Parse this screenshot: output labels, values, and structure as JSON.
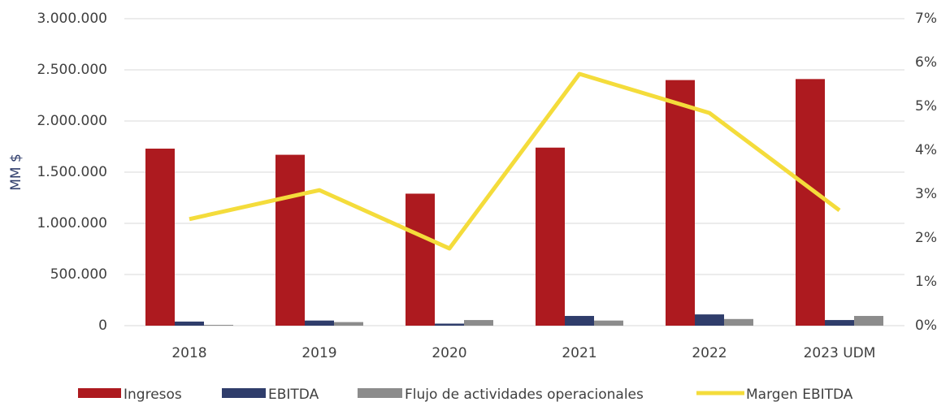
{
  "chart_data": {
    "type": "bar_line",
    "y_label": "MM $",
    "categories": [
      "2018",
      "2019",
      "2020",
      "2021",
      "2022",
      "2023 UDM"
    ],
    "series": [
      {
        "name": "Ingresos",
        "color": "#ad1a1f",
        "kind": "bar",
        "values": [
          1730000,
          1670000,
          1290000,
          1740000,
          2400000,
          2410000
        ]
      },
      {
        "name": "EBITDA",
        "color": "#2f3d6b",
        "kind": "bar",
        "values": [
          40000,
          50000,
          20000,
          95000,
          110000,
          55000
        ]
      },
      {
        "name": "Flujo de actividades operacionales",
        "color": "#8c8c8c",
        "kind": "bar",
        "values": [
          8000,
          35000,
          55000,
          50000,
          65000,
          95000
        ]
      },
      {
        "name": "Margen EBITDA",
        "color": "#f4dc3b",
        "kind": "line",
        "axis": "y2",
        "values": [
          2.43,
          3.09,
          1.76,
          5.74,
          4.85,
          2.63
        ]
      }
    ],
    "ylim": [
      0,
      3000000
    ],
    "yticks": [
      {
        "value": 0,
        "label": "0"
      },
      {
        "value": 500000,
        "label": "500.000"
      },
      {
        "value": 1000000,
        "label": "1.000.000"
      },
      {
        "value": 1500000,
        "label": "1.500.000"
      },
      {
        "value": 2000000,
        "label": "2.000.000"
      },
      {
        "value": 2500000,
        "label": "2.500.000"
      },
      {
        "value": 3000000,
        "label": "3.000.000"
      }
    ],
    "y2lim": [
      0,
      7
    ],
    "y2ticks": [
      {
        "value": 0,
        "label": "0%"
      },
      {
        "value": 1,
        "label": "1%"
      },
      {
        "value": 2,
        "label": "2%"
      },
      {
        "value": 3,
        "label": "3%"
      },
      {
        "value": 4,
        "label": "4%"
      },
      {
        "value": 5,
        "label": "5%"
      },
      {
        "value": 6,
        "label": "6%"
      },
      {
        "value": 7,
        "label": "7%"
      }
    ],
    "grid": true,
    "legend": "bottom"
  }
}
